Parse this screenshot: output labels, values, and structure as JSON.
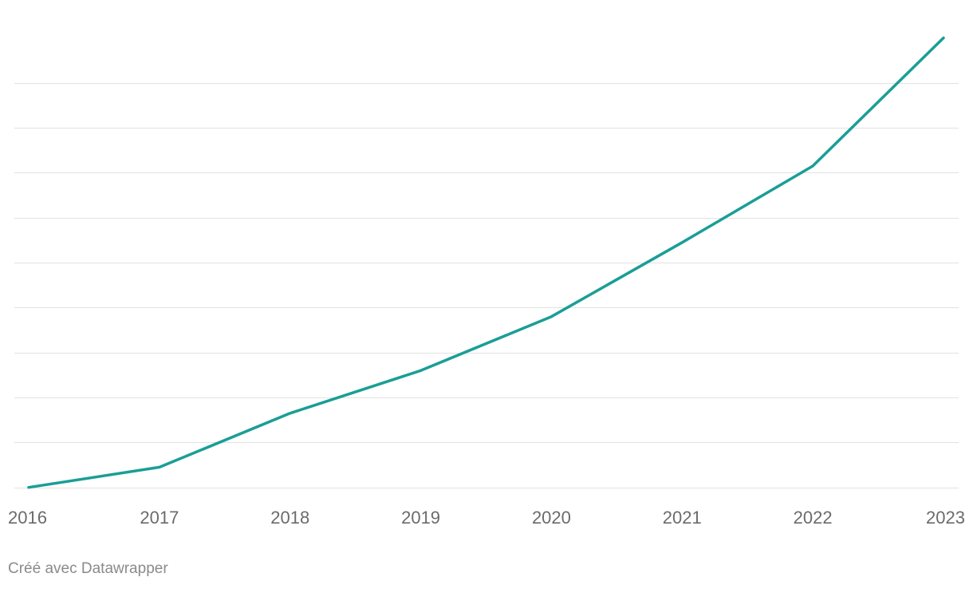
{
  "chart_data": {
    "type": "line",
    "x": [
      "2016",
      "2017",
      "2018",
      "2019",
      "2020",
      "2021",
      "2022",
      "2023"
    ],
    "series": [
      {
        "values": [
          0,
          4.5,
          16.5,
          26,
          38,
          54.5,
          71.5,
          100
        ],
        "color": "#1a9e96"
      }
    ],
    "ylim": [
      -2,
      104.7
    ],
    "y_gridlines": [
      0,
      10,
      20,
      30,
      40,
      50,
      60,
      70,
      80,
      90
    ],
    "y_tick_labels_shown": false,
    "grid": true,
    "legend": "none"
  },
  "footer": {
    "credit": "Créé avec Datawrapper"
  }
}
